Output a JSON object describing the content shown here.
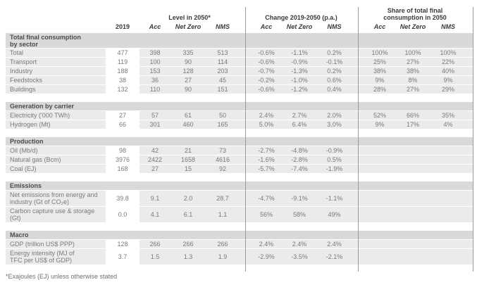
{
  "table": {
    "column_groups": {
      "level": "Level in 2050*",
      "change": "Change 2019-2050 (p.a.)",
      "share": "Share of total final consumption in 2050"
    },
    "columns": {
      "base_year": "2019",
      "scenarios": [
        "Acc",
        "Net Zero",
        "NMS"
      ]
    },
    "sections": [
      {
        "title": "Total final consumption by sector",
        "rows": [
          {
            "label": "Total",
            "y2019": "477",
            "level": [
              "398",
              "335",
              "513"
            ],
            "change": [
              "-0.6%",
              "-1.1%",
              "0.2%"
            ],
            "share": [
              "100%",
              "100%",
              "100%"
            ]
          },
          {
            "label": "Transport",
            "y2019": "119",
            "level": [
              "100",
              "90",
              "114"
            ],
            "change": [
              "-0.6%",
              "-0.9%",
              "-0.1%"
            ],
            "share": [
              "25%",
              "27%",
              "22%"
            ]
          },
          {
            "label": "Industry",
            "y2019": "188",
            "level": [
              "153",
              "128",
              "203"
            ],
            "change": [
              "-0.7%",
              "-1.3%",
              "0.2%"
            ],
            "share": [
              "38%",
              "38%",
              "40%"
            ]
          },
          {
            "label": "Feedstocks",
            "y2019": "38",
            "level": [
              "36",
              "27",
              "45"
            ],
            "change": [
              "-0.2%",
              "-1.0%",
              "0.6%"
            ],
            "share": [
              "9%",
              "8%",
              "9%"
            ]
          },
          {
            "label": "Buildings",
            "y2019": "132",
            "level": [
              "110",
              "90",
              "151"
            ],
            "change": [
              "-0.6%",
              "-1.2%",
              "0.4%"
            ],
            "share": [
              "28%",
              "27%",
              "29%"
            ]
          }
        ]
      },
      {
        "title": "Generation by carrier",
        "rows": [
          {
            "label": "Electricity ('000 TWh)",
            "y2019": "27",
            "level": [
              "57",
              "61",
              "50"
            ],
            "change": [
              "2.4%",
              "2.7%",
              "2.0%"
            ],
            "share": [
              "52%",
              "66%",
              "35%"
            ]
          },
          {
            "label": "Hydrogen (Mt)",
            "y2019": "66",
            "level": [
              "301",
              "460",
              "165"
            ],
            "change": [
              "5.0%",
              "6.4%",
              "3.0%"
            ],
            "share": [
              "9%",
              "17%",
              "4%"
            ]
          }
        ]
      },
      {
        "title": "Production",
        "rows": [
          {
            "label": "Oil (Mb/d)",
            "y2019": "98",
            "level": [
              "42",
              "21",
              "73"
            ],
            "change": [
              "-2.7%",
              "-4.8%",
              "-0.9%"
            ]
          },
          {
            "label": "Natural gas (Bcm)",
            "y2019": "3976",
            "level": [
              "2422",
              "1658",
              "4616"
            ],
            "change": [
              "-1.6%",
              "-2.8%",
              "0.5%"
            ]
          },
          {
            "label": "Coal (EJ)",
            "y2019": "168",
            "level": [
              "27",
              "15",
              "92"
            ],
            "change": [
              "-5.7%",
              "-7.4%",
              "-1.9%"
            ]
          }
        ]
      },
      {
        "title": "Emissions",
        "rows": [
          {
            "label": "Net emissions from energy and industry (Gt of CO₂e)",
            "y2019": "39.8",
            "level": [
              "9.1",
              "2.0",
              "28.7"
            ],
            "change": [
              "-4.7%",
              "-9.1%",
              "-1.1%"
            ]
          },
          {
            "label": "Carbon capture use & storage (Gt)",
            "y2019": "0.0",
            "level": [
              "4.1",
              "6.1",
              "1.1"
            ],
            "change": [
              "56%",
              "58%",
              "49%"
            ]
          }
        ]
      },
      {
        "title": "Macro",
        "rows": [
          {
            "label": "GDP (trillion US$ PPP)",
            "y2019": "128",
            "level": [
              "266",
              "266",
              "266"
            ],
            "change": [
              "2.4%",
              "2.4%",
              "2.4%"
            ]
          },
          {
            "label": "Energy intensity (MJ of TFC per US$ of GDP)",
            "y2019": "3.7",
            "level": [
              "1.5",
              "1.3",
              "1.9"
            ],
            "change": [
              "-2.9%",
              "-3.5%",
              "-2.1%"
            ]
          }
        ]
      }
    ],
    "footnote": "*Exajoules (EJ) unless otherwise stated"
  }
}
